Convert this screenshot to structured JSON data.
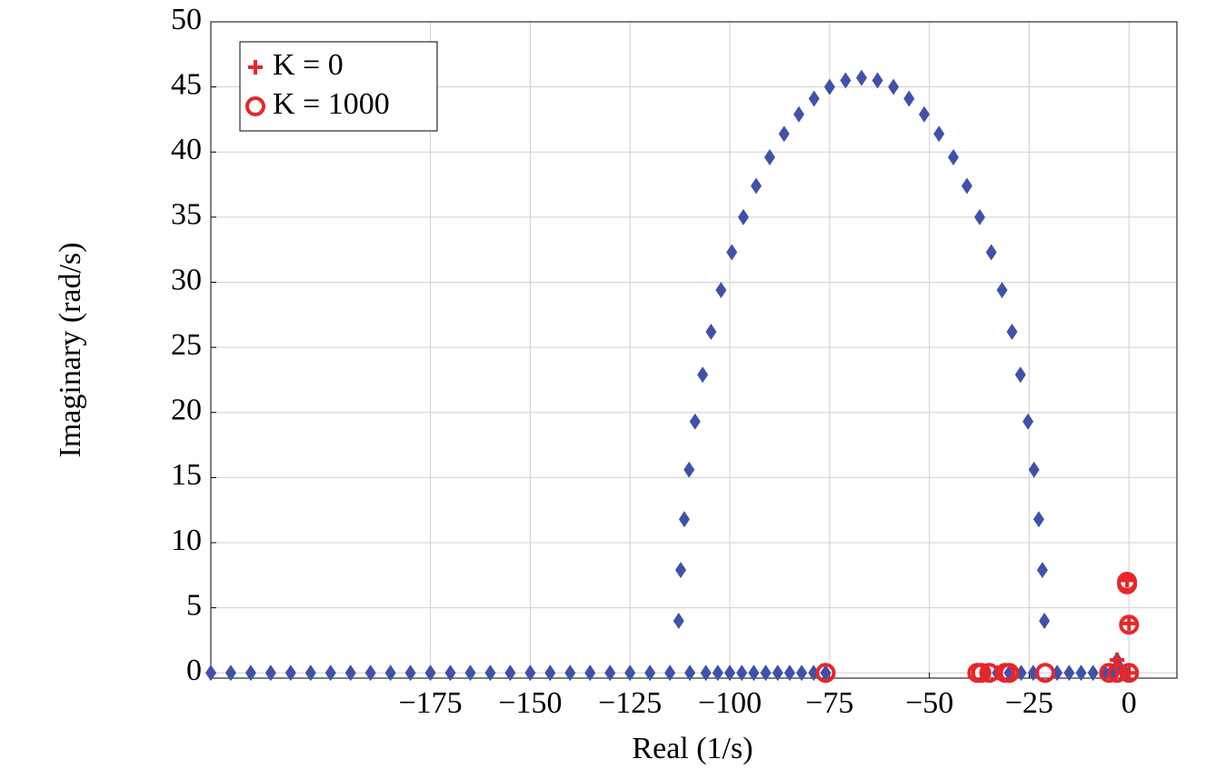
{
  "chart_data": {
    "type": "scatter",
    "xlabel": "Real (1/s)",
    "ylabel": "Imaginary (rad/s)",
    "xlim": [
      -230,
      12
    ],
    "ylim": [
      -0.4,
      50
    ],
    "xticks": [
      {
        "value": -175,
        "label": "−175"
      },
      {
        "value": -150,
        "label": "−150"
      },
      {
        "value": -125,
        "label": "−125"
      },
      {
        "value": -100,
        "label": "−100"
      },
      {
        "value": -75,
        "label": "−75"
      },
      {
        "value": -50,
        "label": "−50"
      },
      {
        "value": -25,
        "label": "−25"
      },
      0
    ],
    "yticks": [
      0,
      5,
      10,
      15,
      20,
      25,
      30,
      35,
      40,
      45,
      50
    ],
    "grid": true,
    "legend": "upper left",
    "series": [
      {
        "color": "#3f51a8",
        "marker": "diamond",
        "x": [
          -230,
          -225,
          -220,
          -215,
          -210,
          -205,
          -200,
          -195,
          -190,
          -185,
          -180,
          -175,
          -170,
          -165,
          -160,
          -155,
          -150,
          -145,
          -140,
          -135,
          -130,
          -125,
          -120,
          -115,
          -110,
          -106,
          -103,
          -100,
          -97,
          -94,
          -91,
          -88,
          -85,
          -82,
          -79,
          -76,
          -36,
          -33,
          -30,
          -27,
          -24,
          -18,
          -15,
          -12,
          -9,
          -6,
          -4,
          -1,
          -3,
          -2.5,
          -21.2,
          -21.7,
          -22.6,
          -23.8,
          -25.3,
          -27.2,
          -29.3,
          -31.8,
          -34.5,
          -37.4,
          -40.6,
          -44.0,
          -47.6,
          -51.3,
          -55.1,
          -59.0,
          -63.0,
          -67.0,
          -71.0,
          -75.0,
          -78.9,
          -82.7,
          -86.4,
          -90.0,
          -93.4,
          -96.6,
          -99.5,
          -102.2,
          -104.7,
          -106.8,
          -108.7,
          -110.2,
          -111.4,
          -112.3,
          -112.8
        ],
        "values": [
          0,
          0,
          0,
          0,
          0,
          0,
          0,
          0,
          0,
          0,
          0,
          0,
          0,
          0,
          0,
          0,
          0,
          0,
          0,
          0,
          0,
          0,
          0,
          0,
          0,
          0,
          0,
          0,
          0,
          0,
          0,
          0,
          0,
          0,
          0,
          0,
          0,
          0,
          0,
          0,
          0,
          0,
          0,
          0,
          0,
          0,
          0,
          0,
          1.0,
          0.5,
          4.0,
          7.9,
          11.8,
          15.6,
          19.3,
          22.9,
          26.2,
          29.4,
          32.3,
          35.0,
          37.4,
          39.6,
          41.4,
          42.9,
          44.1,
          45.0,
          45.5,
          45.7,
          45.5,
          45.0,
          44.1,
          42.9,
          41.4,
          39.6,
          37.4,
          35.0,
          32.3,
          29.4,
          26.2,
          22.9,
          19.3,
          15.6,
          11.8,
          7.9,
          4.0
        ]
      },
      {
        "name": "K = 0",
        "color": "#e8262a",
        "marker": "plus",
        "x": [
          -0.5,
          0,
          -3,
          0
        ],
        "values": [
          7.1,
          3.8,
          1.0,
          0
        ]
      },
      {
        "name": "K = 1000",
        "color": "#e8262a",
        "marker": "circle",
        "x": [
          -76,
          -38,
          -37,
          -35,
          -31,
          -30,
          -21,
          -5,
          -3,
          0,
          -0.5,
          -0.5,
          0
        ],
        "values": [
          0,
          0,
          0,
          0,
          0,
          0,
          0,
          0,
          0,
          0,
          7,
          6.8,
          3.7
        ]
      }
    ]
  }
}
